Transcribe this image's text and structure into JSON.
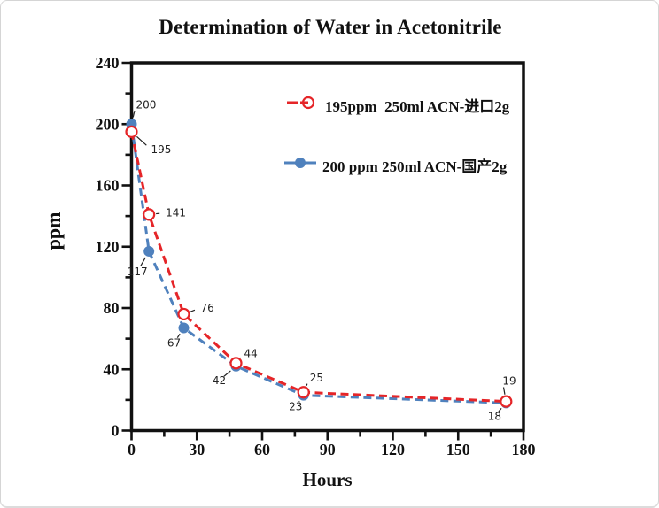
{
  "window": {
    "background": "#ffffff",
    "border_color": "#d5d5d5"
  },
  "chart_data": {
    "type": "line",
    "title": "Determination of Water in Acetonitrile",
    "xlabel": "Hours",
    "ylabel": "ppm",
    "xlim": [
      0,
      180
    ],
    "x_major_step": 30,
    "x_minor_step": 15,
    "ylim": [
      0,
      240
    ],
    "y_major_step": 40,
    "y_minor_step": 20,
    "grid": false,
    "legend_position": "inside-top-center",
    "axis_color": "#111111",
    "point_label_color": "#222222",
    "series": [
      {
        "name": "195ppm  250ml ACN-进口2g",
        "color": "#e52528",
        "marker": "open-circle",
        "line_style": "dashed",
        "x": [
          0,
          8,
          24,
          48,
          79,
          172
        ],
        "y": [
          195,
          141,
          76,
          44,
          25,
          19
        ],
        "point_labels": [
          "195",
          "141",
          "76",
          "44",
          "25",
          "19"
        ],
        "label_offsets": [
          [
            22,
            20
          ],
          [
            19,
            -2
          ],
          [
            19,
            -7
          ],
          [
            9,
            -11
          ],
          [
            7,
            -16
          ],
          [
            -4,
            -23
          ]
        ]
      },
      {
        "name": "200 ppm 250ml ACN-国产2g",
        "color": "#4f81bd",
        "marker": "filled-circle",
        "line_style": "dashed",
        "x": [
          0,
          8,
          24,
          48,
          79,
          172
        ],
        "y": [
          200,
          117,
          67,
          42,
          23,
          18
        ],
        "point_labels": [
          "200",
          "117",
          "67",
          "42",
          "23",
          "18"
        ],
        "label_offsets": [
          [
            5,
            -22
          ],
          [
            -13,
            23
          ],
          [
            -11,
            17
          ],
          [
            -19,
            16
          ],
          [
            -9,
            13
          ],
          [
            -13,
            15
          ]
        ]
      }
    ]
  }
}
